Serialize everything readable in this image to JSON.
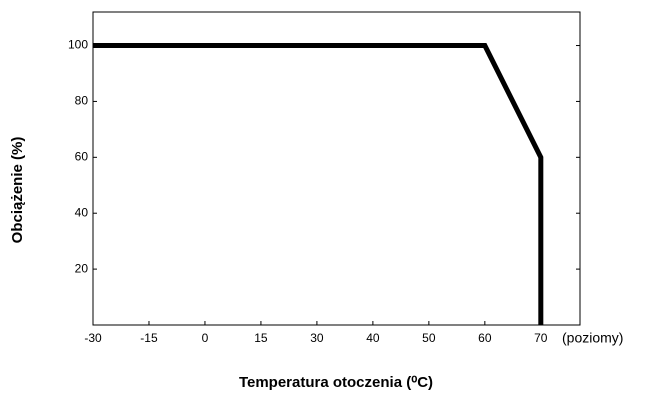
{
  "chart_data": {
    "type": "line",
    "x_label": "Temperatura otoczenia (⁰C)",
    "y_label": "Obciążenie (%)",
    "x_annotation": "(poziomy)",
    "xlim": [
      -30,
      77
    ],
    "xticks": [
      -30,
      -15,
      0,
      15,
      30,
      40,
      50,
      60,
      70
    ],
    "ylim": [
      0,
      112
    ],
    "yticks": [
      20,
      40,
      60,
      80,
      100
    ],
    "series": [
      {
        "color": "#000000",
        "x": [
          -30,
          60,
          70,
          70
        ],
        "values": [
          100,
          100,
          60,
          0
        ]
      }
    ]
  }
}
